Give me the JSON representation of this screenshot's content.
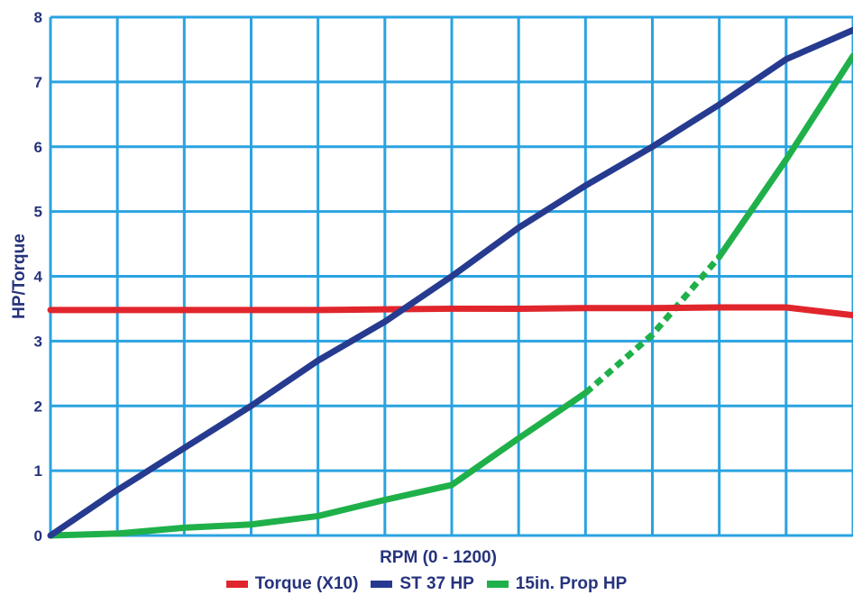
{
  "colors": {
    "grid": "#2aa3e0",
    "text": "#26337c",
    "torque": "#e0262c",
    "st37": "#263b8f",
    "prop": "#1fb04a"
  },
  "chart_data": {
    "type": "line",
    "title": "",
    "xlabel": "RPM (0 - 1200)",
    "ylabel": "HP/Torque",
    "xlim": [
      0,
      1200
    ],
    "ylim": [
      0,
      8
    ],
    "yticks": [
      "0",
      "1",
      "2",
      "3",
      "4",
      "5",
      "6",
      "7",
      "8"
    ],
    "grid": true,
    "legend_position": "bottom",
    "series": [
      {
        "name": "Torque (X10)",
        "color_key": "torque",
        "points": [
          [
            0,
            3.48
          ],
          [
            100,
            3.48
          ],
          [
            200,
            3.48
          ],
          [
            300,
            3.48
          ],
          [
            400,
            3.48
          ],
          [
            500,
            3.49
          ],
          [
            600,
            3.5
          ],
          [
            700,
            3.5
          ],
          [
            800,
            3.51
          ],
          [
            900,
            3.51
          ],
          [
            1000,
            3.52
          ],
          [
            1100,
            3.52
          ],
          [
            1200,
            3.4
          ]
        ]
      },
      {
        "name": "ST 37 HP",
        "color_key": "st37",
        "points": [
          [
            0,
            0
          ],
          [
            100,
            0.7
          ],
          [
            200,
            1.35
          ],
          [
            300,
            2.0
          ],
          [
            400,
            2.7
          ],
          [
            500,
            3.3
          ],
          [
            600,
            4.0
          ],
          [
            700,
            4.75
          ],
          [
            800,
            5.4
          ],
          [
            900,
            6.0
          ],
          [
            1000,
            6.65
          ],
          [
            1100,
            7.35
          ],
          [
            1200,
            7.8
          ]
        ]
      },
      {
        "name": "15in. Prop HP",
        "color_key": "prop",
        "dashed_range": [
          800,
          1000
        ],
        "points": [
          [
            0,
            0
          ],
          [
            100,
            0.03
          ],
          [
            200,
            0.12
          ],
          [
            300,
            0.17
          ],
          [
            400,
            0.3
          ],
          [
            500,
            0.55
          ],
          [
            600,
            0.78
          ],
          [
            700,
            1.5
          ],
          [
            800,
            2.2
          ],
          [
            900,
            3.1
          ],
          [
            1000,
            4.3
          ],
          [
            1100,
            5.8
          ],
          [
            1200,
            7.4
          ]
        ]
      }
    ]
  }
}
